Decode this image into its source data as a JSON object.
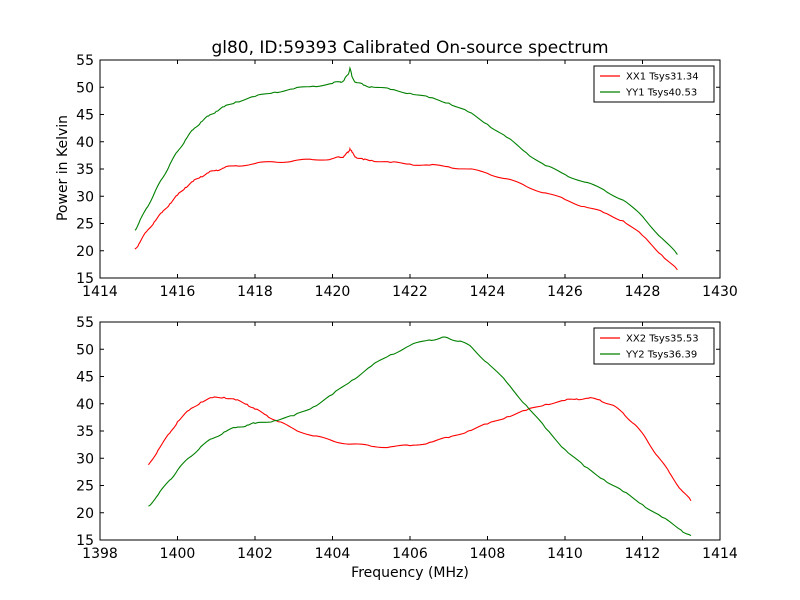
{
  "figure": {
    "title": "gl80, ID:59393 Calibrated On-source spectrum",
    "xlabel": "Frequency (MHz)",
    "ylabel": "Power in Kelvin"
  },
  "colors": {
    "red": "#ff0000",
    "green": "#008000"
  },
  "chart_data": [
    {
      "type": "line",
      "title": "gl80, ID:59393 Calibrated On-source spectrum",
      "xlabel": "",
      "ylabel": "Power in Kelvin",
      "xlim": [
        1414,
        1430
      ],
      "ylim": [
        15,
        55
      ],
      "xticks": [
        "1414",
        "1416",
        "1418",
        "1420",
        "1422",
        "1424",
        "1426",
        "1428",
        "1430"
      ],
      "yticks": [
        "15",
        "20",
        "25",
        "30",
        "35",
        "40",
        "45",
        "50",
        "55"
      ],
      "grid": false,
      "legend_position": "top-right",
      "series": [
        {
          "name": "XX1 Tsys31.34",
          "color": "#ff0000",
          "x": [
            1414.9,
            1415.0,
            1415.2,
            1415.4,
            1415.6,
            1415.8,
            1416.0,
            1416.2,
            1416.4,
            1416.6,
            1416.8,
            1417.0,
            1417.2,
            1417.5,
            1418.0,
            1418.5,
            1419.0,
            1419.5,
            1420.0,
            1420.2,
            1420.3,
            1420.4,
            1420.45,
            1420.5,
            1420.6,
            1420.8,
            1421.0,
            1421.5,
            1422.0,
            1422.5,
            1423.0,
            1423.5,
            1424.0,
            1424.5,
            1425.0,
            1425.5,
            1426.0,
            1426.5,
            1427.0,
            1427.5,
            1428.0,
            1428.5,
            1428.9
          ],
          "y": [
            20.3,
            21.2,
            23.5,
            25.3,
            27.0,
            28.6,
            30.2,
            31.6,
            32.7,
            33.6,
            34.3,
            34.8,
            35.2,
            35.6,
            36.0,
            36.3,
            36.5,
            36.7,
            36.9,
            37.1,
            37.4,
            38.0,
            38.7,
            38.1,
            37.2,
            36.7,
            36.6,
            36.2,
            35.9,
            35.7,
            35.4,
            35.0,
            34.2,
            33.2,
            31.8,
            30.6,
            29.4,
            28.1,
            27.0,
            25.5,
            22.8,
            19.2,
            16.5
          ]
        },
        {
          "name": "YY1 Tsys40.53",
          "color": "#008000",
          "x": [
            1414.9,
            1415.0,
            1415.2,
            1415.4,
            1415.6,
            1415.8,
            1416.0,
            1416.2,
            1416.4,
            1416.6,
            1416.8,
            1417.0,
            1417.2,
            1417.5,
            1418.0,
            1418.5,
            1419.0,
            1419.5,
            1420.0,
            1420.2,
            1420.3,
            1420.4,
            1420.45,
            1420.5,
            1420.6,
            1420.8,
            1421.0,
            1421.5,
            1422.0,
            1422.5,
            1423.0,
            1423.5,
            1424.0,
            1424.5,
            1425.0,
            1425.5,
            1426.0,
            1426.5,
            1427.0,
            1427.5,
            1428.0,
            1428.5,
            1428.9
          ],
          "y": [
            23.8,
            25.0,
            27.8,
            30.5,
            33.2,
            35.8,
            38.2,
            40.3,
            42.2,
            43.6,
            44.7,
            45.6,
            46.4,
            47.3,
            48.3,
            49.1,
            49.7,
            50.2,
            50.7,
            51.0,
            51.3,
            52.3,
            53.5,
            52.0,
            50.9,
            50.4,
            50.1,
            49.6,
            48.9,
            48.1,
            47.1,
            45.5,
            43.2,
            40.8,
            38.0,
            35.6,
            34.0,
            32.6,
            31.2,
            29.3,
            26.3,
            22.3,
            19.3
          ]
        }
      ]
    },
    {
      "type": "line",
      "title": "",
      "xlabel": "Frequency (MHz)",
      "ylabel": "",
      "xlim": [
        1398,
        1414
      ],
      "ylim": [
        15,
        55
      ],
      "xticks": [
        "1398",
        "1400",
        "1402",
        "1404",
        "1406",
        "1408",
        "1410",
        "1412",
        "1414"
      ],
      "yticks": [
        "15",
        "20",
        "25",
        "30",
        "35",
        "40",
        "45",
        "50",
        "55"
      ],
      "grid": false,
      "legend_position": "top-right",
      "series": [
        {
          "name": "XX2 Tsys35.53",
          "color": "#ff0000",
          "x": [
            1399.25,
            1399.5,
            1399.8,
            1400.0,
            1400.3,
            1400.6,
            1400.9,
            1401.2,
            1401.5,
            1401.8,
            1402.0,
            1402.3,
            1402.6,
            1403.0,
            1403.5,
            1404.0,
            1404.5,
            1405.0,
            1405.5,
            1406.0,
            1406.5,
            1407.0,
            1407.5,
            1408.0,
            1408.5,
            1409.0,
            1409.5,
            1410.0,
            1410.3,
            1410.6,
            1410.9,
            1411.2,
            1411.5,
            1411.8,
            1412.1,
            1412.4,
            1412.7,
            1413.0,
            1413.25
          ],
          "y": [
            28.8,
            31.5,
            34.6,
            36.7,
            38.8,
            40.3,
            41.1,
            41.2,
            40.7,
            39.9,
            39.0,
            37.9,
            36.7,
            35.4,
            34.1,
            33.2,
            32.6,
            32.2,
            32.1,
            32.3,
            32.9,
            33.8,
            35.0,
            36.3,
            37.6,
            38.8,
            39.9,
            40.6,
            40.9,
            41.0,
            40.7,
            39.8,
            38.3,
            36.2,
            33.5,
            30.3,
            27.3,
            24.2,
            22.2
          ]
        },
        {
          "name": "YY2 Tsys36.39",
          "color": "#008000",
          "x": [
            1399.25,
            1399.5,
            1399.8,
            1400.0,
            1400.3,
            1400.6,
            1400.9,
            1401.2,
            1401.5,
            1401.8,
            1402.0,
            1402.5,
            1403.0,
            1403.5,
            1404.0,
            1404.5,
            1405.0,
            1405.5,
            1406.0,
            1406.5,
            1406.8,
            1407.0,
            1407.3,
            1407.6,
            1408.0,
            1408.5,
            1409.0,
            1409.5,
            1410.0,
            1410.5,
            1411.0,
            1411.5,
            1412.0,
            1412.5,
            1413.0,
            1413.25
          ],
          "y": [
            21.2,
            23.3,
            26.0,
            27.8,
            30.1,
            32.1,
            33.6,
            34.8,
            35.6,
            36.1,
            36.4,
            36.9,
            37.8,
            39.4,
            41.7,
            44.3,
            46.9,
            49.0,
            50.7,
            51.7,
            52.1,
            52.0,
            51.5,
            50.3,
            47.5,
            43.9,
            39.7,
            35.5,
            31.6,
            28.5,
            26.1,
            23.9,
            21.5,
            19.2,
            16.8,
            15.8
          ]
        }
      ]
    }
  ]
}
